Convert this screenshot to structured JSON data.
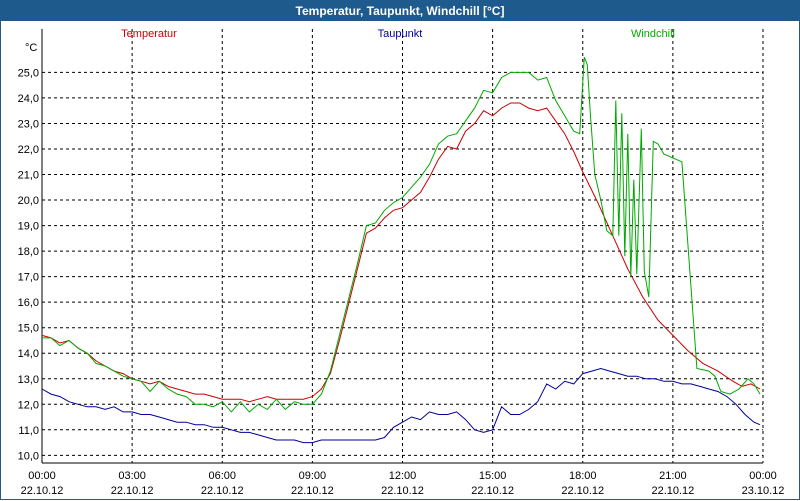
{
  "window": {
    "title": "Temperatur, Taupunkt, Windchill [°C]"
  },
  "chart_data": {
    "type": "line",
    "title": "Temperatur, Taupunkt, Windchill [°C]",
    "ylabel": "°C",
    "ylim": [
      9.7,
      26.7
    ],
    "yticks": [
      10,
      11,
      12,
      13,
      14,
      15,
      16,
      17,
      18,
      19,
      20,
      21,
      22,
      23,
      24,
      25
    ],
    "ytick_labels": [
      "10,0",
      "11,0",
      "12,0",
      "13,0",
      "14,0",
      "15,0",
      "16,0",
      "17,0",
      "18,0",
      "19,0",
      "20,0",
      "21,0",
      "22,0",
      "23,0",
      "24,0",
      "25,0"
    ],
    "xlim": [
      0,
      24
    ],
    "xticks": [
      {
        "x": 0,
        "time": "00:00",
        "date": "22.10.12"
      },
      {
        "x": 3,
        "time": "03:00",
        "date": "22.10.12"
      },
      {
        "x": 6,
        "time": "06:00",
        "date": "22.10.12"
      },
      {
        "x": 9,
        "time": "09:00",
        "date": "22.10.12"
      },
      {
        "x": 12,
        "time": "12:00",
        "date": "22.10.12"
      },
      {
        "x": 15,
        "time": "15:00",
        "date": "22.10.12"
      },
      {
        "x": 18,
        "time": "18:00",
        "date": "22.10.12"
      },
      {
        "x": 21,
        "time": "21:00",
        "date": "22.10.12"
      },
      {
        "x": 24,
        "time": "00:00",
        "date": "23.10.12"
      }
    ],
    "grid": true,
    "series": [
      {
        "name": "Temperatur",
        "color": "#cc0000",
        "x": [
          0,
          0.3,
          0.6,
          0.9,
          1.2,
          1.5,
          1.8,
          2.1,
          2.4,
          2.7,
          3.0,
          3.3,
          3.6,
          3.9,
          4.2,
          4.5,
          4.8,
          5.1,
          5.4,
          5.7,
          6.0,
          6.3,
          6.6,
          6.9,
          7.2,
          7.5,
          7.8,
          8.1,
          8.4,
          8.7,
          9.0,
          9.3,
          9.6,
          9.9,
          10.2,
          10.5,
          10.8,
          11.1,
          11.4,
          11.7,
          12.0,
          12.3,
          12.6,
          12.9,
          13.2,
          13.5,
          13.8,
          14.1,
          14.4,
          14.7,
          15.0,
          15.3,
          15.6,
          15.9,
          16.2,
          16.5,
          16.8,
          17.1,
          17.4,
          17.7,
          18.0,
          18.5,
          19.0,
          19.5,
          20.0,
          20.5,
          21.0,
          21.5,
          22.0,
          22.5,
          23.0,
          23.3,
          23.6,
          23.9
        ],
        "y": [
          14.7,
          14.6,
          14.4,
          14.5,
          14.2,
          14.0,
          13.7,
          13.5,
          13.3,
          13.2,
          13.0,
          12.9,
          12.8,
          12.9,
          12.7,
          12.6,
          12.5,
          12.4,
          12.4,
          12.3,
          12.2,
          12.2,
          12.2,
          12.1,
          12.2,
          12.3,
          12.2,
          12.2,
          12.2,
          12.2,
          12.3,
          12.6,
          13.2,
          14.5,
          15.9,
          17.3,
          18.7,
          18.9,
          19.3,
          19.6,
          19.7,
          20.0,
          20.3,
          20.9,
          21.6,
          22.1,
          22.0,
          22.7,
          23.0,
          23.5,
          23.3,
          23.6,
          23.8,
          23.8,
          23.6,
          23.5,
          23.6,
          23.1,
          22.6,
          21.9,
          21.1,
          19.9,
          18.6,
          17.3,
          16.2,
          15.3,
          14.7,
          14.1,
          13.6,
          13.3,
          12.9,
          12.7,
          12.8,
          12.6
        ]
      },
      {
        "name": "Taupunkt",
        "color": "#000099",
        "x": [
          0,
          0.3,
          0.6,
          0.9,
          1.2,
          1.5,
          1.8,
          2.1,
          2.4,
          2.7,
          3.0,
          3.3,
          3.6,
          3.9,
          4.2,
          4.5,
          4.8,
          5.1,
          5.4,
          5.7,
          6.0,
          6.3,
          6.6,
          6.9,
          7.2,
          7.5,
          7.8,
          8.1,
          8.4,
          8.7,
          9.0,
          9.3,
          9.6,
          9.9,
          10.2,
          10.5,
          10.8,
          11.1,
          11.4,
          11.7,
          12.0,
          12.3,
          12.6,
          12.9,
          13.2,
          13.5,
          13.8,
          14.1,
          14.4,
          14.7,
          15.0,
          15.3,
          15.6,
          15.9,
          16.2,
          16.5,
          16.8,
          17.1,
          17.4,
          17.7,
          18.0,
          18.3,
          18.6,
          18.9,
          19.2,
          19.5,
          19.8,
          20.1,
          20.4,
          20.7,
          21.0,
          21.3,
          21.6,
          21.9,
          22.2,
          22.5,
          22.8,
          23.1,
          23.4,
          23.7,
          23.9
        ],
        "y": [
          12.6,
          12.4,
          12.3,
          12.1,
          12.0,
          11.9,
          11.9,
          11.8,
          11.9,
          11.7,
          11.7,
          11.6,
          11.6,
          11.5,
          11.4,
          11.3,
          11.3,
          11.2,
          11.2,
          11.1,
          11.1,
          11.0,
          10.9,
          10.9,
          10.8,
          10.7,
          10.6,
          10.6,
          10.6,
          10.5,
          10.5,
          10.6,
          10.6,
          10.6,
          10.6,
          10.6,
          10.6,
          10.6,
          10.7,
          11.1,
          11.3,
          11.5,
          11.4,
          11.7,
          11.6,
          11.6,
          11.7,
          11.4,
          11.0,
          10.9,
          11.0,
          11.9,
          11.6,
          11.6,
          11.8,
          12.1,
          12.8,
          12.6,
          12.9,
          12.8,
          13.2,
          13.3,
          13.4,
          13.3,
          13.2,
          13.1,
          13.1,
          13.0,
          13.0,
          12.9,
          12.9,
          12.8,
          12.8,
          12.7,
          12.6,
          12.5,
          12.3,
          12.0,
          11.6,
          11.3,
          11.2
        ]
      },
      {
        "name": "Windchill",
        "color": "#00aa00",
        "x": [
          0,
          0.3,
          0.6,
          0.9,
          1.2,
          1.5,
          1.8,
          2.1,
          2.4,
          2.7,
          3.0,
          3.3,
          3.6,
          3.9,
          4.2,
          4.5,
          4.8,
          5.1,
          5.4,
          5.7,
          6.0,
          6.3,
          6.6,
          6.9,
          7.2,
          7.5,
          7.8,
          8.1,
          8.4,
          8.7,
          9.0,
          9.3,
          9.6,
          9.9,
          10.2,
          10.5,
          10.8,
          11.1,
          11.4,
          11.7,
          12.0,
          12.3,
          12.6,
          12.9,
          13.2,
          13.5,
          13.8,
          14.1,
          14.4,
          14.7,
          15.0,
          15.3,
          15.6,
          15.9,
          16.2,
          16.5,
          16.8,
          17.1,
          17.4,
          17.7,
          17.9,
          18.05,
          18.15,
          18.25,
          18.4,
          18.6,
          18.8,
          19.0,
          19.1,
          19.2,
          19.3,
          19.4,
          19.5,
          19.6,
          19.7,
          19.8,
          19.95,
          20.05,
          20.2,
          20.35,
          20.5,
          20.55,
          20.7,
          21.3,
          21.8,
          22.2,
          22.4,
          22.6,
          22.9,
          23.2,
          23.5,
          23.7,
          23.9
        ],
        "y": [
          14.6,
          14.6,
          14.3,
          14.5,
          14.2,
          14.0,
          13.6,
          13.5,
          13.3,
          13.1,
          13.0,
          12.9,
          12.5,
          12.9,
          12.6,
          12.4,
          12.3,
          12.0,
          12.0,
          11.9,
          12.1,
          11.7,
          12.1,
          11.7,
          12.0,
          11.8,
          12.2,
          11.8,
          12.1,
          12.0,
          12.0,
          12.4,
          13.3,
          14.7,
          16.1,
          17.5,
          19.0,
          19.1,
          19.6,
          19.9,
          20.1,
          20.5,
          20.9,
          21.4,
          22.2,
          22.5,
          22.6,
          23.1,
          23.6,
          24.3,
          24.2,
          24.8,
          25.0,
          25.0,
          25.0,
          24.7,
          24.8,
          23.9,
          23.3,
          22.7,
          22.6,
          25.6,
          25.3,
          23.4,
          21.0,
          20.0,
          18.8,
          18.6,
          23.9,
          18.6,
          23.4,
          17.8,
          22.6,
          17.0,
          20.8,
          17.1,
          22.8,
          17.2,
          16.2,
          22.3,
          22.2,
          22.1,
          21.8,
          21.5,
          13.4,
          13.3,
          13.1,
          12.5,
          12.4,
          12.6,
          13.0,
          12.8,
          12.4
        ]
      }
    ]
  }
}
